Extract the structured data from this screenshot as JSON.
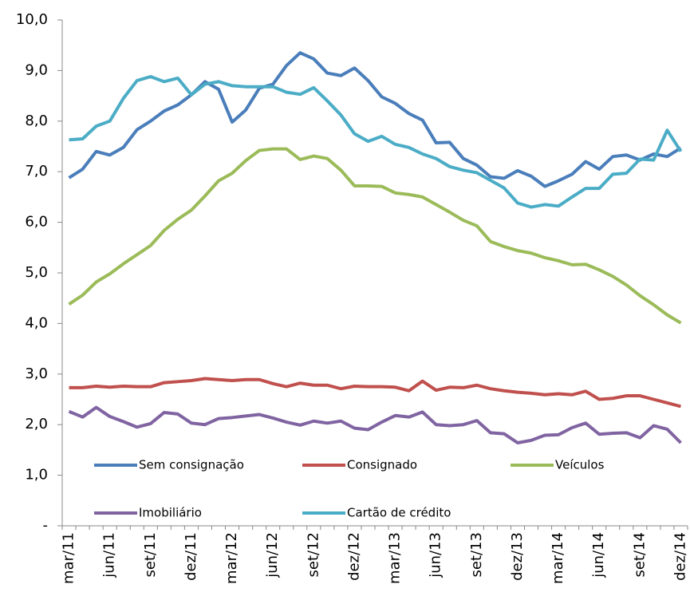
{
  "chart_data": {
    "type": "line",
    "categories": [
      "mar/11",
      null,
      null,
      "jun/11",
      null,
      null,
      "set/11",
      null,
      null,
      "dez/11",
      null,
      null,
      "mar/12",
      null,
      null,
      "jun/12",
      null,
      null,
      "set/12",
      null,
      null,
      "dez/12",
      null,
      null,
      "mar/13",
      null,
      null,
      "jun/13",
      null,
      null,
      "set/13",
      null,
      null,
      "dez/13",
      null,
      null,
      "mar/14",
      null,
      null,
      "jun/14",
      null,
      null,
      "set/14",
      null,
      null,
      "dez/14"
    ],
    "series": [
      {
        "name": "Sem consignação",
        "color": "#4a7ebb",
        "values": [
          6.88,
          7.05,
          7.4,
          7.33,
          7.48,
          7.83,
          8.0,
          8.2,
          8.32,
          8.52,
          8.78,
          8.63,
          7.98,
          8.22,
          8.65,
          8.73,
          9.1,
          9.35,
          9.23,
          8.95,
          8.9,
          9.05,
          8.8,
          8.48,
          8.35,
          8.15,
          8.02,
          7.57,
          7.58,
          7.26,
          7.13,
          6.9,
          6.87,
          7.02,
          6.91,
          6.71,
          6.82,
          6.95,
          7.2,
          7.05,
          7.3,
          7.33,
          7.23,
          7.35,
          7.3,
          7.47
        ]
      },
      {
        "name": "Consignado",
        "color": "#c0504d",
        "values": [
          2.73,
          2.73,
          2.76,
          2.74,
          2.76,
          2.75,
          2.75,
          2.83,
          2.85,
          2.87,
          2.91,
          2.89,
          2.87,
          2.89,
          2.89,
          2.81,
          2.75,
          2.82,
          2.78,
          2.78,
          2.71,
          2.76,
          2.75,
          2.75,
          2.74,
          2.67,
          2.86,
          2.68,
          2.74,
          2.73,
          2.78,
          2.71,
          2.67,
          2.64,
          2.62,
          2.59,
          2.61,
          2.59,
          2.66,
          2.5,
          2.52,
          2.57,
          2.57,
          2.5,
          2.43,
          2.36
        ]
      },
      {
        "name": "Veículos",
        "color": "#9bbb59",
        "values": [
          4.38,
          4.56,
          4.82,
          4.98,
          5.18,
          5.36,
          5.54,
          5.84,
          6.06,
          6.24,
          6.52,
          6.82,
          6.97,
          7.22,
          7.42,
          7.45,
          7.45,
          7.24,
          7.31,
          7.26,
          7.03,
          6.72,
          6.72,
          6.71,
          6.58,
          6.55,
          6.5,
          6.35,
          6.2,
          6.04,
          5.93,
          5.62,
          5.52,
          5.44,
          5.39,
          5.3,
          5.24,
          5.16,
          5.17,
          5.06,
          4.93,
          4.76,
          4.55,
          4.37,
          4.17,
          4.01
        ]
      },
      {
        "name": "Imobiliário",
        "color": "#8064a2",
        "values": [
          2.26,
          2.15,
          2.34,
          2.16,
          2.06,
          1.95,
          2.02,
          2.24,
          2.21,
          2.03,
          2.0,
          2.12,
          2.14,
          2.17,
          2.2,
          2.13,
          2.05,
          1.99,
          2.07,
          2.03,
          2.07,
          1.93,
          1.9,
          2.05,
          2.18,
          2.15,
          2.25,
          2.0,
          1.98,
          2.0,
          2.08,
          1.84,
          1.82,
          1.64,
          1.69,
          1.79,
          1.8,
          1.94,
          2.03,
          1.81,
          1.83,
          1.84,
          1.74,
          1.98,
          1.91,
          1.64
        ]
      },
      {
        "name": "Cartão de crédito",
        "color": "#4bacc6",
        "values": [
          7.63,
          7.65,
          7.9,
          8.0,
          8.45,
          8.8,
          8.88,
          8.78,
          8.85,
          8.52,
          8.73,
          8.78,
          8.7,
          8.68,
          8.68,
          8.68,
          8.57,
          8.53,
          8.66,
          8.4,
          8.12,
          7.75,
          7.6,
          7.7,
          7.54,
          7.48,
          7.35,
          7.26,
          7.1,
          7.03,
          6.98,
          6.83,
          6.68,
          6.38,
          6.3,
          6.35,
          6.32,
          6.5,
          6.67,
          6.67,
          6.95,
          6.97,
          7.25,
          7.23,
          7.82,
          7.4
        ]
      }
    ],
    "ylim": [
      0,
      10
    ],
    "yticks": [
      {
        "value": 0,
        "label": "-"
      },
      {
        "value": 1,
        "label": "1,0"
      },
      {
        "value": 2,
        "label": "2,0"
      },
      {
        "value": 3,
        "label": "3,0"
      },
      {
        "value": 4,
        "label": "4,0"
      },
      {
        "value": 5,
        "label": "5,0"
      },
      {
        "value": 6,
        "label": "6,0"
      },
      {
        "value": 7,
        "label": "7,0"
      },
      {
        "value": 8,
        "label": "8,0"
      },
      {
        "value": 9,
        "label": "9,0"
      },
      {
        "value": 10,
        "label": "10,0"
      }
    ],
    "grid": false,
    "legend": "bottom"
  }
}
